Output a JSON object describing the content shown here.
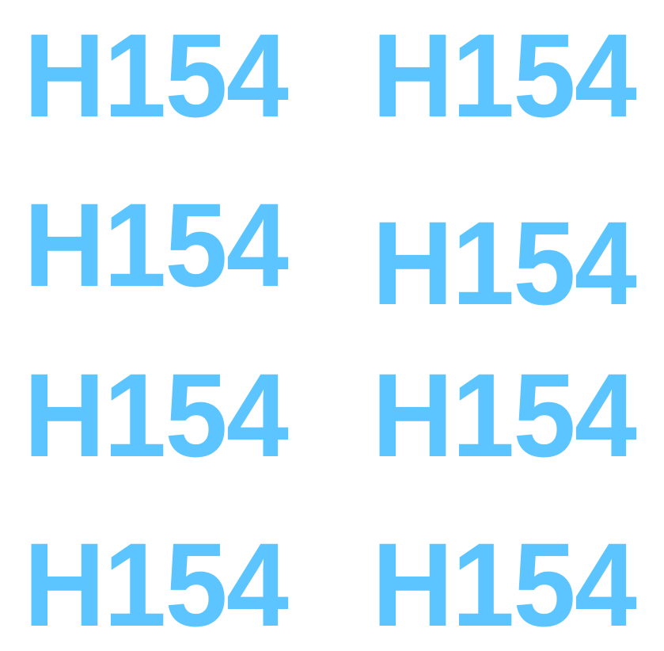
{
  "labels": [
    "H154",
    "H154",
    "H154",
    "H154",
    "H154",
    "H154",
    "H154",
    "H154"
  ],
  "colors": {
    "text": "#5CC4FF",
    "background": "#FFFFFF"
  }
}
